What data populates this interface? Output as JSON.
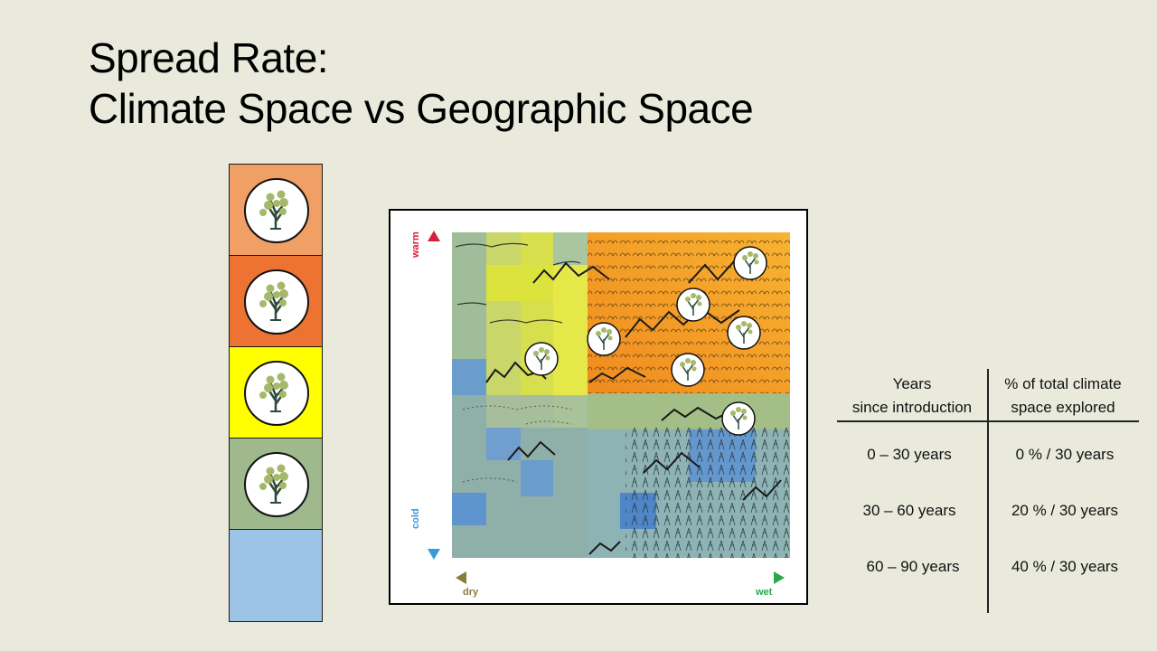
{
  "slide": {
    "title_line1": "Spread Rate:",
    "title_line2": "Climate Space vs Geographic Space"
  },
  "climate_stack": {
    "cells": [
      {
        "color": "#f0a064",
        "icon": "tree-icon"
      },
      {
        "color": "#ec7332",
        "icon": "tree-icon"
      },
      {
        "color": "#ffff00",
        "icon": "tree-icon"
      },
      {
        "color": "#9fb88c",
        "icon": "tree-icon"
      },
      {
        "color": "#9dc3e6",
        "icon": ""
      }
    ]
  },
  "map": {
    "y_axis_top": "warm",
    "y_axis_bottom": "cold",
    "x_axis_left": "dry",
    "x_axis_right": "wet",
    "colors": {
      "warm": "#d4213d",
      "cold": "#3a9ad9",
      "dry": "#8a7a3c",
      "wet": "#2aa84a"
    }
  },
  "table": {
    "col1_header_line1": "Years",
    "col1_header_line2": "since introduction",
    "col2_header_line1": "% of total climate",
    "col2_header_line2": "space explored",
    "rows": [
      {
        "years": "0 – 30 years",
        "explored": "0 % / 30 years"
      },
      {
        "years": "30 – 60 years",
        "explored": "20 % / 30 years"
      },
      {
        "years": "60 – 90 years",
        "explored": "40 % / 30 years"
      }
    ]
  }
}
